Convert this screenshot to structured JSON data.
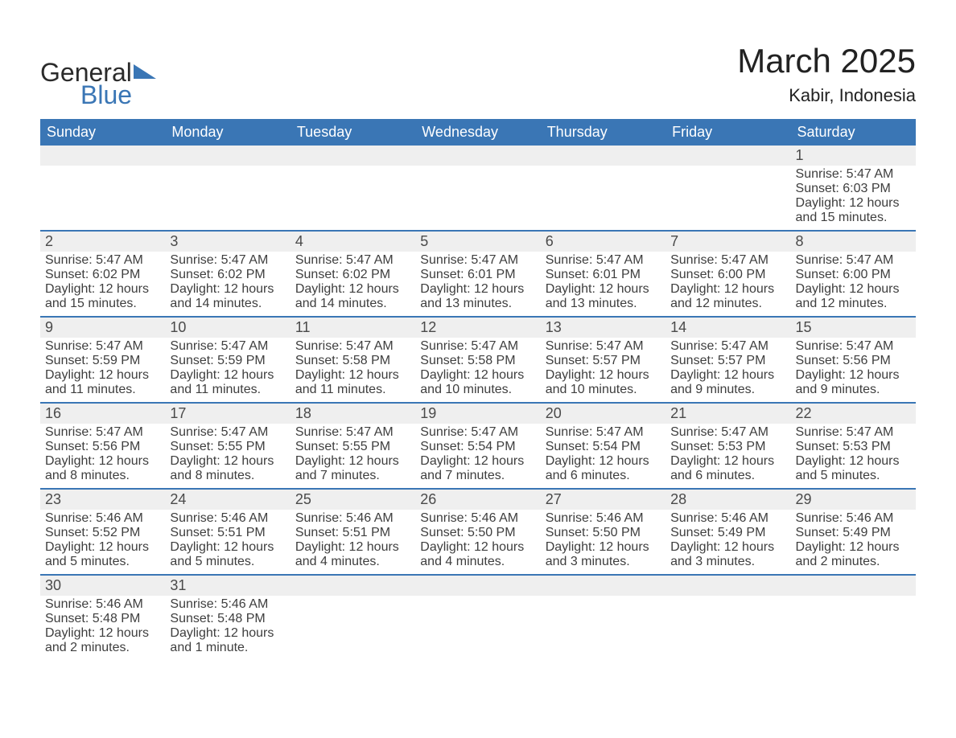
{
  "brand": {
    "line1": "General",
    "line2": "Blue"
  },
  "title": "March 2025",
  "location": "Kabir, Indonesia",
  "colors": {
    "header_bg": "#3a76b5",
    "row_sep": "#3a76b5",
    "daynum_bg": "#efefef",
    "text": "#3e3e3e",
    "bg": "#ffffff"
  },
  "columns": [
    "Sunday",
    "Monday",
    "Tuesday",
    "Wednesday",
    "Thursday",
    "Friday",
    "Saturday"
  ],
  "weeks": [
    [
      null,
      null,
      null,
      null,
      null,
      null,
      {
        "n": "1",
        "sunrise": "Sunrise: 5:47 AM",
        "sunset": "Sunset: 6:03 PM",
        "day1": "Daylight: 12 hours",
        "day2": "and 15 minutes."
      }
    ],
    [
      {
        "n": "2",
        "sunrise": "Sunrise: 5:47 AM",
        "sunset": "Sunset: 6:02 PM",
        "day1": "Daylight: 12 hours",
        "day2": "and 15 minutes."
      },
      {
        "n": "3",
        "sunrise": "Sunrise: 5:47 AM",
        "sunset": "Sunset: 6:02 PM",
        "day1": "Daylight: 12 hours",
        "day2": "and 14 minutes."
      },
      {
        "n": "4",
        "sunrise": "Sunrise: 5:47 AM",
        "sunset": "Sunset: 6:02 PM",
        "day1": "Daylight: 12 hours",
        "day2": "and 14 minutes."
      },
      {
        "n": "5",
        "sunrise": "Sunrise: 5:47 AM",
        "sunset": "Sunset: 6:01 PM",
        "day1": "Daylight: 12 hours",
        "day2": "and 13 minutes."
      },
      {
        "n": "6",
        "sunrise": "Sunrise: 5:47 AM",
        "sunset": "Sunset: 6:01 PM",
        "day1": "Daylight: 12 hours",
        "day2": "and 13 minutes."
      },
      {
        "n": "7",
        "sunrise": "Sunrise: 5:47 AM",
        "sunset": "Sunset: 6:00 PM",
        "day1": "Daylight: 12 hours",
        "day2": "and 12 minutes."
      },
      {
        "n": "8",
        "sunrise": "Sunrise: 5:47 AM",
        "sunset": "Sunset: 6:00 PM",
        "day1": "Daylight: 12 hours",
        "day2": "and 12 minutes."
      }
    ],
    [
      {
        "n": "9",
        "sunrise": "Sunrise: 5:47 AM",
        "sunset": "Sunset: 5:59 PM",
        "day1": "Daylight: 12 hours",
        "day2": "and 11 minutes."
      },
      {
        "n": "10",
        "sunrise": "Sunrise: 5:47 AM",
        "sunset": "Sunset: 5:59 PM",
        "day1": "Daylight: 12 hours",
        "day2": "and 11 minutes."
      },
      {
        "n": "11",
        "sunrise": "Sunrise: 5:47 AM",
        "sunset": "Sunset: 5:58 PM",
        "day1": "Daylight: 12 hours",
        "day2": "and 11 minutes."
      },
      {
        "n": "12",
        "sunrise": "Sunrise: 5:47 AM",
        "sunset": "Sunset: 5:58 PM",
        "day1": "Daylight: 12 hours",
        "day2": "and 10 minutes."
      },
      {
        "n": "13",
        "sunrise": "Sunrise: 5:47 AM",
        "sunset": "Sunset: 5:57 PM",
        "day1": "Daylight: 12 hours",
        "day2": "and 10 minutes."
      },
      {
        "n": "14",
        "sunrise": "Sunrise: 5:47 AM",
        "sunset": "Sunset: 5:57 PM",
        "day1": "Daylight: 12 hours",
        "day2": "and 9 minutes."
      },
      {
        "n": "15",
        "sunrise": "Sunrise: 5:47 AM",
        "sunset": "Sunset: 5:56 PM",
        "day1": "Daylight: 12 hours",
        "day2": "and 9 minutes."
      }
    ],
    [
      {
        "n": "16",
        "sunrise": "Sunrise: 5:47 AM",
        "sunset": "Sunset: 5:56 PM",
        "day1": "Daylight: 12 hours",
        "day2": "and 8 minutes."
      },
      {
        "n": "17",
        "sunrise": "Sunrise: 5:47 AM",
        "sunset": "Sunset: 5:55 PM",
        "day1": "Daylight: 12 hours",
        "day2": "and 8 minutes."
      },
      {
        "n": "18",
        "sunrise": "Sunrise: 5:47 AM",
        "sunset": "Sunset: 5:55 PM",
        "day1": "Daylight: 12 hours",
        "day2": "and 7 minutes."
      },
      {
        "n": "19",
        "sunrise": "Sunrise: 5:47 AM",
        "sunset": "Sunset: 5:54 PM",
        "day1": "Daylight: 12 hours",
        "day2": "and 7 minutes."
      },
      {
        "n": "20",
        "sunrise": "Sunrise: 5:47 AM",
        "sunset": "Sunset: 5:54 PM",
        "day1": "Daylight: 12 hours",
        "day2": "and 6 minutes."
      },
      {
        "n": "21",
        "sunrise": "Sunrise: 5:47 AM",
        "sunset": "Sunset: 5:53 PM",
        "day1": "Daylight: 12 hours",
        "day2": "and 6 minutes."
      },
      {
        "n": "22",
        "sunrise": "Sunrise: 5:47 AM",
        "sunset": "Sunset: 5:53 PM",
        "day1": "Daylight: 12 hours",
        "day2": "and 5 minutes."
      }
    ],
    [
      {
        "n": "23",
        "sunrise": "Sunrise: 5:46 AM",
        "sunset": "Sunset: 5:52 PM",
        "day1": "Daylight: 12 hours",
        "day2": "and 5 minutes."
      },
      {
        "n": "24",
        "sunrise": "Sunrise: 5:46 AM",
        "sunset": "Sunset: 5:51 PM",
        "day1": "Daylight: 12 hours",
        "day2": "and 5 minutes."
      },
      {
        "n": "25",
        "sunrise": "Sunrise: 5:46 AM",
        "sunset": "Sunset: 5:51 PM",
        "day1": "Daylight: 12 hours",
        "day2": "and 4 minutes."
      },
      {
        "n": "26",
        "sunrise": "Sunrise: 5:46 AM",
        "sunset": "Sunset: 5:50 PM",
        "day1": "Daylight: 12 hours",
        "day2": "and 4 minutes."
      },
      {
        "n": "27",
        "sunrise": "Sunrise: 5:46 AM",
        "sunset": "Sunset: 5:50 PM",
        "day1": "Daylight: 12 hours",
        "day2": "and 3 minutes."
      },
      {
        "n": "28",
        "sunrise": "Sunrise: 5:46 AM",
        "sunset": "Sunset: 5:49 PM",
        "day1": "Daylight: 12 hours",
        "day2": "and 3 minutes."
      },
      {
        "n": "29",
        "sunrise": "Sunrise: 5:46 AM",
        "sunset": "Sunset: 5:49 PM",
        "day1": "Daylight: 12 hours",
        "day2": "and 2 minutes."
      }
    ],
    [
      {
        "n": "30",
        "sunrise": "Sunrise: 5:46 AM",
        "sunset": "Sunset: 5:48 PM",
        "day1": "Daylight: 12 hours",
        "day2": "and 2 minutes."
      },
      {
        "n": "31",
        "sunrise": "Sunrise: 5:46 AM",
        "sunset": "Sunset: 5:48 PM",
        "day1": "Daylight: 12 hours",
        "day2": "and 1 minute."
      },
      null,
      null,
      null,
      null,
      null
    ]
  ]
}
